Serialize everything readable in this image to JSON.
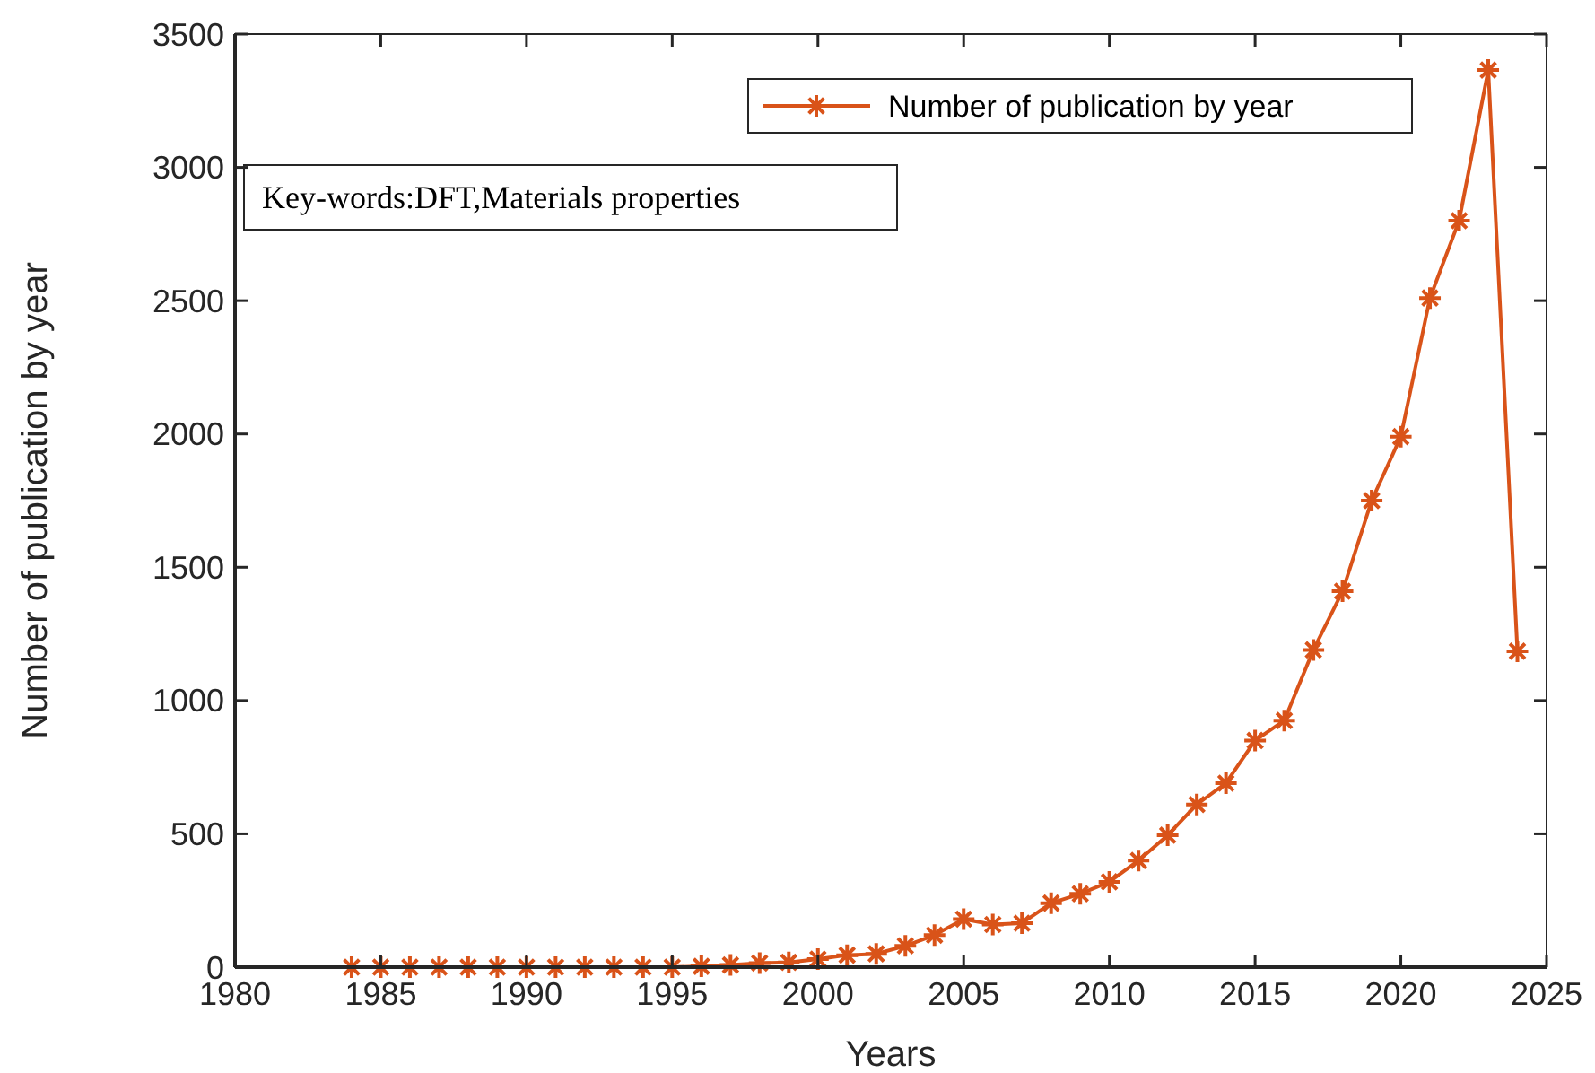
{
  "chart_data": {
    "type": "line",
    "xlabel": "Years",
    "ylabel": "Number of publication by year",
    "x": [
      1984,
      1985,
      1986,
      1987,
      1988,
      1989,
      1990,
      1991,
      1992,
      1993,
      1994,
      1995,
      1996,
      1997,
      1998,
      1999,
      2000,
      2001,
      2002,
      2003,
      2004,
      2005,
      2006,
      2007,
      2008,
      2009,
      2010,
      2011,
      2012,
      2013,
      2014,
      2015,
      2016,
      2017,
      2018,
      2019,
      2020,
      2021,
      2022,
      2023,
      2024
    ],
    "series": [
      {
        "name": "Number of publication by year",
        "color": "#d95319",
        "values": [
          0,
          0,
          0,
          0,
          0,
          0,
          0,
          0,
          0,
          0,
          0,
          0,
          3,
          8,
          15,
          18,
          30,
          45,
          50,
          80,
          120,
          180,
          160,
          165,
          240,
          275,
          320,
          400,
          495,
          610,
          690,
          850,
          925,
          1190,
          1410,
          1750,
          1990,
          2510,
          2800,
          3365,
          1185
        ]
      }
    ],
    "xlim": [
      1980,
      2025
    ],
    "xticks": [
      1980,
      1985,
      1990,
      1995,
      2000,
      2005,
      2010,
      2015,
      2020,
      2025
    ],
    "ylim": [
      0,
      3500
    ],
    "yticks": [
      0,
      500,
      1000,
      1500,
      2000,
      2500,
      3000,
      3500
    ],
    "grid": false,
    "legend": "top right",
    "marker": "cross",
    "line_style": "solid",
    "annotations": [
      "Key-words:DFT,Materials properties"
    ]
  }
}
